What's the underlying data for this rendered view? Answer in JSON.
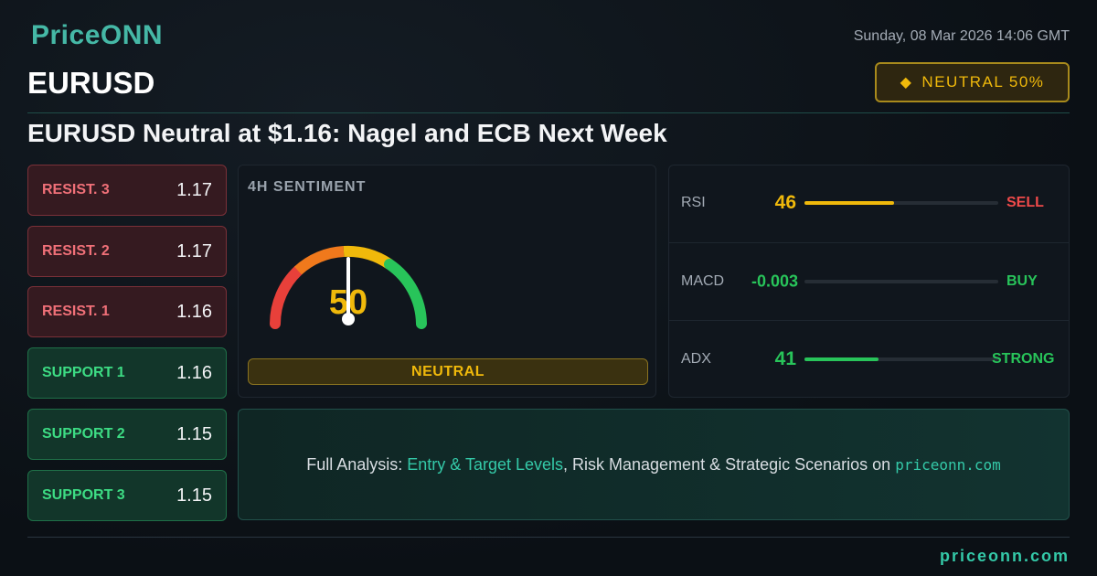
{
  "header": {
    "brand": "PriceONN",
    "date": "Sunday, 08 Mar 2026 14:06 GMT",
    "symbol": "EURUSD",
    "badge": "NEUTRAL 50%",
    "headline": "EURUSD Neutral at $1.16: Nagel and ECB Next Week"
  },
  "levels": [
    {
      "label": "RESIST. 3",
      "value": 1.17
    },
    {
      "label": "RESIST. 2",
      "value": 1.17
    },
    {
      "label": "RESIST. 1",
      "value": 1.16
    },
    {
      "label": "SUPPORT 1",
      "value": 1.16
    },
    {
      "label": "SUPPORT 2",
      "value": 1.15
    },
    {
      "label": "SUPPORT 3",
      "value": 1.15
    }
  ],
  "sentiment": {
    "title": "4H SENTIMENT",
    "value": 50,
    "label": "NEUTRAL"
  },
  "indicators": [
    {
      "name": "RSI",
      "value": 46,
      "signal": "SELL"
    },
    {
      "name": "MACD",
      "value": -0.003,
      "signal": "BUY"
    },
    {
      "name": "ADX",
      "value": 41,
      "signal": "STRONG"
    }
  ],
  "cta": {
    "prefix": "Full Analysis: ",
    "highlight": "Entry & Target Levels",
    "middle": ", Risk Management & Strategic Scenarios on ",
    "site": "priceonn.com"
  },
  "footer": {
    "site": "priceonn.com"
  }
}
